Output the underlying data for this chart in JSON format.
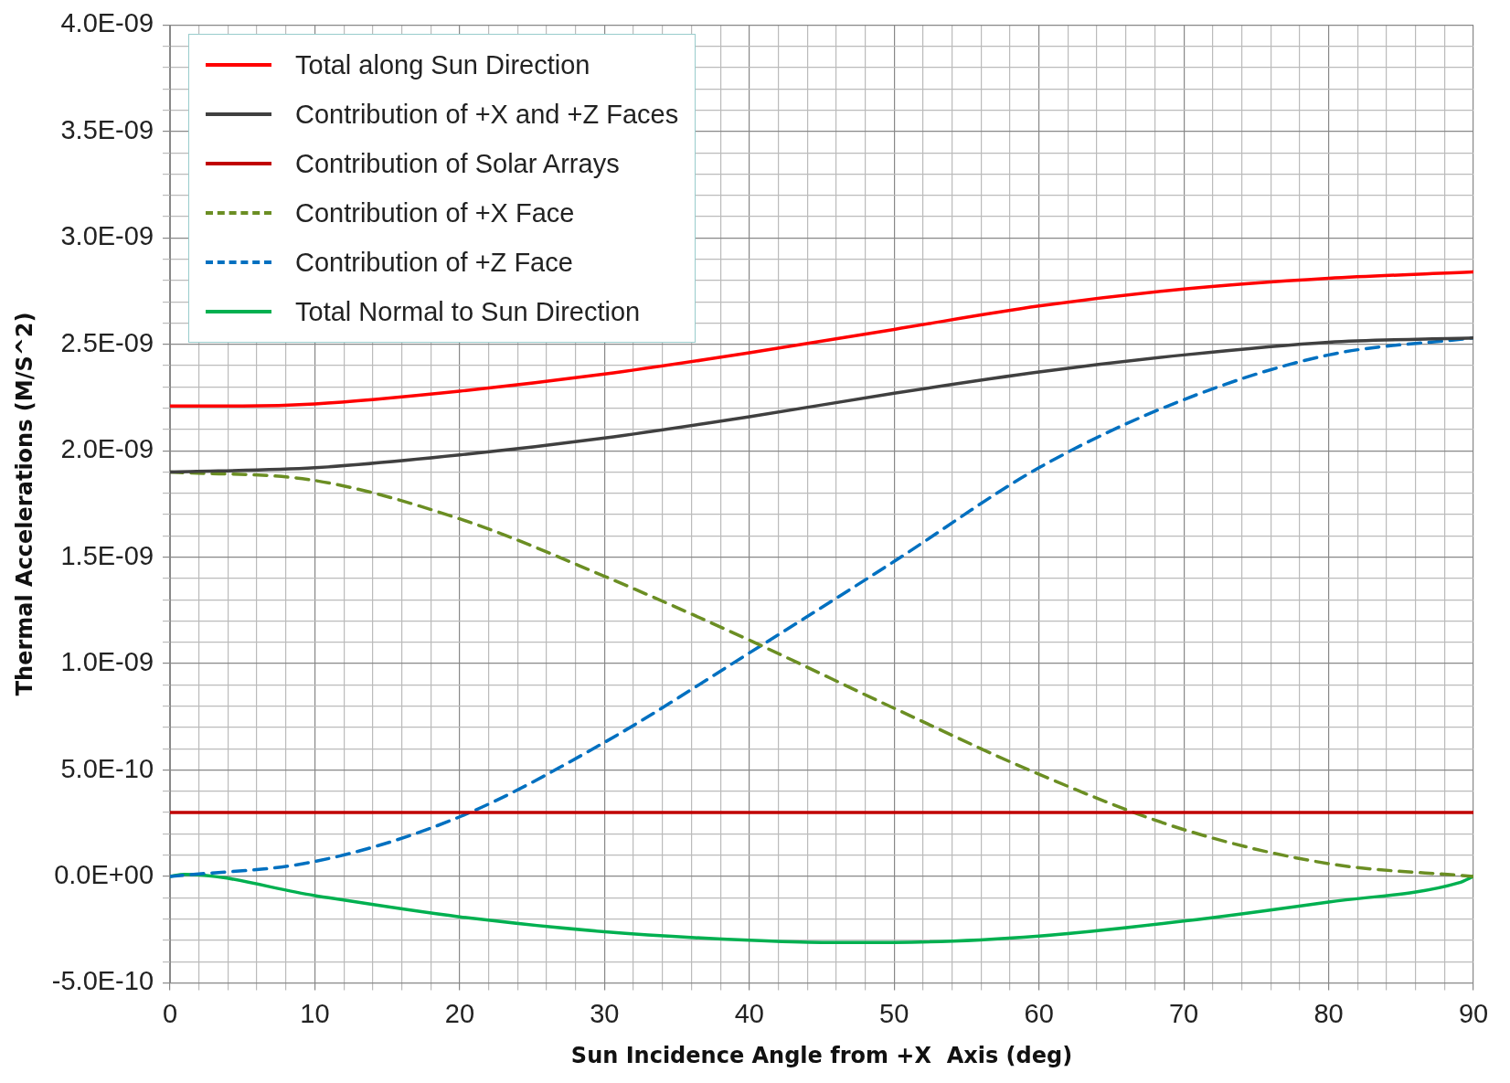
{
  "chart_data": {
    "type": "line",
    "xlabel": "Sun Incidence Angle from +X  Axis (deg)",
    "ylabel": "Thermal Accelerations (M/S^2)",
    "xlim": [
      0,
      90
    ],
    "xticks": [
      0,
      {
        "value": 2,
        "label": null
      },
      {
        "value": 4,
        "label": null
      },
      {
        "value": 6,
        "label": null
      },
      {
        "value": 8,
        "label": null
      },
      10,
      {
        "value": 12,
        "label": null
      },
      {
        "value": 14,
        "label": null
      },
      {
        "value": 16,
        "label": null
      },
      {
        "value": 18,
        "label": null
      },
      20,
      {
        "value": 22,
        "label": null
      },
      {
        "value": 24,
        "label": null
      },
      {
        "value": 26,
        "label": null
      },
      {
        "value": 28,
        "label": null
      },
      30,
      {
        "value": 32,
        "label": null
      },
      {
        "value": 34,
        "label": null
      },
      {
        "value": 36,
        "label": null
      },
      {
        "value": 38,
        "label": null
      },
      40,
      {
        "value": 42,
        "label": null
      },
      {
        "value": 44,
        "label": null
      },
      {
        "value": 46,
        "label": null
      },
      {
        "value": 48,
        "label": null
      },
      50,
      {
        "value": 52,
        "label": null
      },
      {
        "value": 54,
        "label": null
      },
      {
        "value": 56,
        "label": null
      },
      {
        "value": 58,
        "label": null
      },
      60,
      {
        "value": 62,
        "label": null
      },
      {
        "value": 64,
        "label": null
      },
      {
        "value": 66,
        "label": null
      },
      {
        "value": 68,
        "label": null
      },
      70,
      {
        "value": 72,
        "label": null
      },
      {
        "value": 74,
        "label": null
      },
      {
        "value": 76,
        "label": null
      },
      {
        "value": 78,
        "label": null
      },
      80,
      {
        "value": 82,
        "label": null
      },
      {
        "value": 84,
        "label": null
      },
      {
        "value": 86,
        "label": null
      },
      {
        "value": 88,
        "label": null
      },
      90
    ],
    "ylim": [
      -5e-10,
      4e-09
    ],
    "yticks": [
      {
        "value": -5e-10,
        "label": "-5.0E-10"
      },
      {
        "value": -4e-10,
        "label": null
      },
      {
        "value": -3e-10,
        "label": null
      },
      {
        "value": -2e-10,
        "label": null
      },
      {
        "value": -1e-10,
        "label": null
      },
      {
        "value": 0,
        "label": "0.0E+00"
      },
      {
        "value": 1e-10,
        "label": null
      },
      {
        "value": 2e-10,
        "label": null
      },
      {
        "value": 3e-10,
        "label": null
      },
      {
        "value": 4e-10,
        "label": null
      },
      {
        "value": 5e-10,
        "label": "5.0E-10"
      },
      {
        "value": 6e-10,
        "label": null
      },
      {
        "value": 7e-10,
        "label": null
      },
      {
        "value": 8e-10,
        "label": null
      },
      {
        "value": 9e-10,
        "label": null
      },
      {
        "value": 1e-09,
        "label": "1.0E-09"
      },
      {
        "value": 1.1e-09,
        "label": null
      },
      {
        "value": 1.2e-09,
        "label": null
      },
      {
        "value": 1.3e-09,
        "label": null
      },
      {
        "value": 1.4e-09,
        "label": null
      },
      {
        "value": 1.5e-09,
        "label": "1.5E-09"
      },
      {
        "value": 1.6e-09,
        "label": null
      },
      {
        "value": 1.7e-09,
        "label": null
      },
      {
        "value": 1.8e-09,
        "label": null
      },
      {
        "value": 1.9e-09,
        "label": null
      },
      {
        "value": 2e-09,
        "label": "2.0E-09"
      },
      {
        "value": 2.1e-09,
        "label": null
      },
      {
        "value": 2.2e-09,
        "label": null
      },
      {
        "value": 2.3e-09,
        "label": null
      },
      {
        "value": 2.4e-09,
        "label": null
      },
      {
        "value": 2.5e-09,
        "label": "2.5E-09"
      },
      {
        "value": 2.6e-09,
        "label": null
      },
      {
        "value": 2.7e-09,
        "label": null
      },
      {
        "value": 2.8e-09,
        "label": null
      },
      {
        "value": 2.9e-09,
        "label": null
      },
      {
        "value": 3e-09,
        "label": "3.0E-09"
      },
      {
        "value": 3.1e-09,
        "label": null
      },
      {
        "value": 3.2e-09,
        "label": null
      },
      {
        "value": 3.3e-09,
        "label": null
      },
      {
        "value": 3.4e-09,
        "label": null
      },
      {
        "value": 3.5e-09,
        "label": "3.5E-09"
      },
      {
        "value": 3.6e-09,
        "label": null
      },
      {
        "value": 3.7e-09,
        "label": null
      },
      {
        "value": 3.8e-09,
        "label": null
      },
      {
        "value": 3.9e-09,
        "label": null
      },
      {
        "value": 4e-09,
        "label": "4.0E-09"
      }
    ],
    "grid": true,
    "legend": "top left",
    "marker": "none",
    "series": [
      {
        "name": "Total along Sun Direction",
        "color": "#ff0000",
        "x": [
          0,
          5,
          10,
          20,
          30,
          40,
          50,
          60,
          70,
          80,
          90
        ],
        "values": [
          2.21e-09,
          2.21e-09,
          2.22e-09,
          2.28e-09,
          2.36e-09,
          2.46e-09,
          2.57e-09,
          2.68e-09,
          2.76e-09,
          2.81e-09,
          2.84e-09
        ]
      },
      {
        "name": "Contribution of +X and +Z Faces",
        "color": "#404040",
        "x": [
          0,
          10,
          20,
          30,
          40,
          50,
          60,
          70,
          80,
          90
        ],
        "values": [
          1.9e-09,
          1.92e-09,
          1.98e-09,
          2.06e-09,
          2.16e-09,
          2.27e-09,
          2.37e-09,
          2.45e-09,
          2.51e-09,
          2.53e-09
        ]
      },
      {
        "name": "Contribution of Solar Arrays",
        "color": "#c00000",
        "x": [
          0,
          90
        ],
        "values": [
          3e-10,
          3e-10
        ]
      },
      {
        "name": "Contribution of +X Face",
        "color": "#6b8e23",
        "line_style": "dashed",
        "x": [
          0,
          10,
          20,
          30,
          40,
          50,
          60,
          70,
          80,
          90
        ],
        "values": [
          1.9e-09,
          1.86e-09,
          1.68e-09,
          1.41e-09,
          1.11e-09,
          7.9e-10,
          4.8e-10,
          2.2e-10,
          6e-11,
          0
        ]
      },
      {
        "name": "Contribution of +Z Face",
        "color": "#0070c0",
        "line_style": "dashed",
        "x": [
          0,
          10,
          20,
          30,
          40,
          50,
          60,
          70,
          80,
          90
        ],
        "values": [
          0,
          7e-11,
          2.8e-10,
          6.3e-10,
          1.05e-09,
          1.48e-09,
          1.92e-09,
          2.24e-09,
          2.45e-09,
          2.53e-09
        ]
      },
      {
        "name": "Total Normal to Sun Direction",
        "color": "#00b050",
        "x": [
          0,
          1,
          10,
          20,
          30,
          40,
          45,
          50,
          60,
          70,
          80,
          89,
          90
        ],
        "values": [
          0,
          1e-11,
          -9e-11,
          -1.9e-10,
          -2.6e-10,
          -3e-10,
          -3.1e-10,
          -3.1e-10,
          -2.8e-10,
          -2.1e-10,
          -1.2e-10,
          -3e-11,
          0
        ]
      }
    ]
  }
}
